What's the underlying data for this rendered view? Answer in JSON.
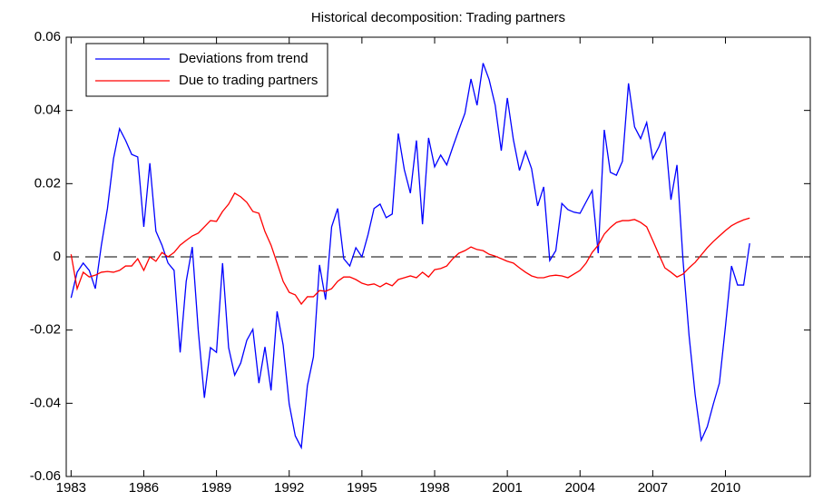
{
  "chart_data": {
    "type": "line",
    "title": "Historical decomposition: Trading partners",
    "x": [
      1983,
      1983.25,
      1983.5,
      1983.75,
      1984,
      1984.25,
      1984.5,
      1984.75,
      1985,
      1985.25,
      1985.5,
      1985.75,
      1986,
      1986.25,
      1986.5,
      1986.75,
      1987,
      1987.25,
      1987.5,
      1987.75,
      1988,
      1988.25,
      1988.5,
      1988.75,
      1989,
      1989.25,
      1989.5,
      1989.75,
      1990,
      1990.25,
      1990.5,
      1990.75,
      1991,
      1991.25,
      1991.5,
      1991.75,
      1992,
      1992.25,
      1992.5,
      1992.75,
      1993,
      1993.25,
      1993.5,
      1993.75,
      1994,
      1994.25,
      1994.5,
      1994.75,
      1995,
      1995.25,
      1995.5,
      1995.75,
      1996,
      1996.25,
      1996.5,
      1996.75,
      1997,
      1997.25,
      1997.5,
      1997.75,
      1998,
      1998.25,
      1998.5,
      1998.75,
      1999,
      1999.25,
      1999.5,
      1999.75,
      2000,
      2000.25,
      2000.5,
      2000.75,
      2001,
      2001.25,
      2001.5,
      2001.75,
      2002,
      2002.25,
      2002.5,
      2002.75,
      2003,
      2003.25,
      2003.5,
      2003.75,
      2004,
      2004.25,
      2004.5,
      2004.75,
      2005,
      2005.25,
      2005.5,
      2005.75,
      2006,
      2006.25,
      2006.5,
      2006.75,
      2007,
      2007.25,
      2007.5,
      2007.75,
      2008,
      2008.25,
      2008.5,
      2008.75,
      2009,
      2009.25,
      2009.5,
      2009.75,
      2010,
      2010.25,
      2010.5,
      2010.75,
      2011
    ],
    "series": [
      {
        "name": "Deviations from trend",
        "color": "#0000ff",
        "values": [
          -0.0112,
          -0.0042,
          -0.0017,
          -0.0037,
          -0.0087,
          0.0032,
          0.0132,
          0.0268,
          0.035,
          0.0318,
          0.028,
          0.0273,
          0.0082,
          0.0256,
          0.007,
          0.0032,
          -0.0017,
          -0.0037,
          -0.0261,
          -0.0067,
          0.0027,
          -0.0203,
          -0.0385,
          -0.0248,
          -0.0261,
          -0.0017,
          -0.0248,
          -0.0323,
          -0.029,
          -0.0228,
          -0.0198,
          -0.0345,
          -0.0246,
          -0.0365,
          -0.0149,
          -0.0241,
          -0.0402,
          -0.0489,
          -0.0521,
          -0.0352,
          -0.0273,
          -0.0022,
          -0.0117,
          0.0082,
          0.0132,
          -0.0005,
          -0.0025,
          0.0025,
          0,
          0.006,
          0.0132,
          0.0144,
          0.0107,
          0.0117,
          0.0337,
          0.0238,
          0.0174,
          0.0318,
          0.0089,
          0.0325,
          0.0246,
          0.0278,
          0.0251,
          0.03,
          0.0347,
          0.0392,
          0.0486,
          0.0414,
          0.0529,
          0.0484,
          0.0414,
          0.029,
          0.0434,
          0.032,
          0.0236,
          0.0288,
          0.0241,
          0.0139,
          0.0191,
          -0.001,
          0.0017,
          0.0146,
          0.0129,
          0.0122,
          0.0119,
          0.015,
          0.0181,
          0.001,
          0.0347,
          0.0231,
          0.0223,
          0.0261,
          0.0474,
          0.0355,
          0.0323,
          0.0367,
          0.0268,
          0.03,
          0.0342,
          0.0156,
          0.0251,
          -0.001,
          -0.0216,
          -0.0377,
          -0.0501,
          -0.0464,
          -0.0402,
          -0.0345,
          -0.019,
          -0.0025,
          -0.0077,
          -0.0077,
          0.0037
        ]
      },
      {
        "name": "Due to trading partners",
        "color": "#ff0000",
        "values": [
          0.0007,
          -0.0087,
          -0.0042,
          -0.0055,
          -0.005,
          -0.0042,
          -0.004,
          -0.0042,
          -0.0037,
          -0.0025,
          -0.0025,
          -0.0005,
          -0.0037,
          0,
          -0.0012,
          0.0012,
          0,
          0.0012,
          0.0032,
          0.0045,
          0.0057,
          0.0065,
          0.0082,
          0.0099,
          0.0097,
          0.0124,
          0.0144,
          0.0174,
          0.0164,
          0.0149,
          0.0124,
          0.0119,
          0.0069,
          0.0032,
          -0.0017,
          -0.0067,
          -0.0097,
          -0.0104,
          -0.0129,
          -0.0109,
          -0.0109,
          -0.0092,
          -0.0094,
          -0.0087,
          -0.0067,
          -0.0055,
          -0.0055,
          -0.0062,
          -0.0072,
          -0.0077,
          -0.0074,
          -0.0082,
          -0.0072,
          -0.0079,
          -0.0062,
          -0.0057,
          -0.0052,
          -0.0057,
          -0.0042,
          -0.0055,
          -0.0035,
          -0.0032,
          -0.0025,
          -0.0005,
          0.001,
          0.0017,
          0.0027,
          0.002,
          0.0017,
          0.0007,
          0.0002,
          -0.0005,
          -0.0012,
          -0.0017,
          -0.003,
          -0.0042,
          -0.0052,
          -0.0057,
          -0.0057,
          -0.0052,
          -0.005,
          -0.0052,
          -0.0057,
          -0.0047,
          -0.0037,
          -0.0017,
          0.0012,
          0.0032,
          0.0062,
          0.008,
          0.0094,
          0.0099,
          0.0099,
          0.0102,
          0.0094,
          0.0082,
          0.0045,
          0.0007,
          -0.003,
          -0.0042,
          -0.0055,
          -0.0047,
          -0.003,
          -0.0015,
          0.0005,
          0.0025,
          0.0042,
          0.0057,
          0.0072,
          0.0085,
          0.0094,
          0.0101,
          0.0106
        ]
      }
    ],
    "reference_line": 0,
    "xlim": [
      1982.8,
      2013.5
    ],
    "xticks": [
      1983,
      1986,
      1989,
      1992,
      1995,
      1998,
      2001,
      2004,
      2007,
      2010
    ],
    "ylim": [
      -0.06,
      0.06
    ],
    "yticks": [
      -0.06,
      -0.04,
      -0.02,
      0,
      0.02,
      0.04,
      0.06
    ],
    "legend": "upper left"
  }
}
